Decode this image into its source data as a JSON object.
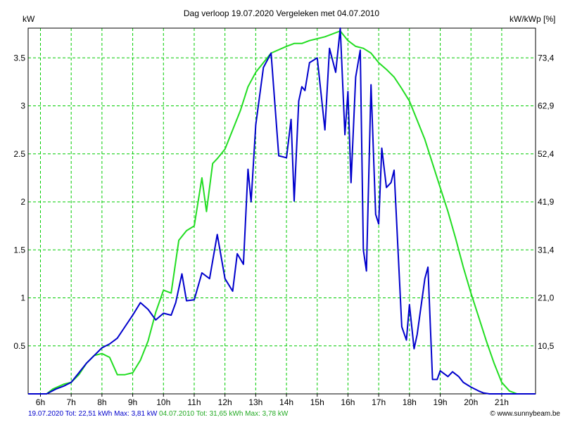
{
  "chart_data": {
    "type": "line",
    "title": "Dag  verloop 19.07.2020   Vergeleken met 04.07.2010",
    "ylabel_left": "kW",
    "ylabel_right": "kW/kWp [%]",
    "x_tick_labels": [
      "6h",
      "7h",
      "8h",
      "9h",
      "10h",
      "11h",
      "12h",
      "13h",
      "14h",
      "15h",
      "16h",
      "17h",
      "18h",
      "19h",
      "20h",
      "21h"
    ],
    "xlim_hours": [
      5.6,
      22.1
    ],
    "ylim": [
      0,
      3.81
    ],
    "y_ticks_left": [
      "0.5",
      "1",
      "1.5",
      "2",
      "2.5",
      "3",
      "3.5"
    ],
    "y_ticks_right": [
      "10,5",
      "21,0",
      "31,4",
      "41,9",
      "52,4",
      "62,9",
      "73,4"
    ],
    "grid": true,
    "series": [
      {
        "name": "19.07.2020",
        "color": "#0000cc",
        "legend": "19.07.2020 Tot: 22,51 kWh Max: 3,81 kW",
        "x": [
          5.6,
          6.2,
          6.5,
          6.75,
          7.0,
          7.25,
          7.5,
          7.75,
          8.0,
          8.25,
          8.5,
          8.75,
          9.0,
          9.25,
          9.5,
          9.75,
          10.0,
          10.25,
          10.4,
          10.6,
          10.75,
          11.0,
          11.25,
          11.5,
          11.75,
          12.0,
          12.25,
          12.4,
          12.6,
          12.75,
          12.85,
          13.0,
          13.25,
          13.5,
          13.75,
          14.0,
          14.15,
          14.25,
          14.4,
          14.5,
          14.6,
          14.75,
          15.0,
          15.25,
          15.4,
          15.6,
          15.75,
          15.9,
          16.0,
          16.1,
          16.25,
          16.4,
          16.5,
          16.6,
          16.75,
          16.9,
          17.0,
          17.1,
          17.25,
          17.4,
          17.5,
          17.75,
          17.9,
          18.0,
          18.15,
          18.25,
          18.5,
          18.6,
          18.75,
          18.9,
          19.0,
          19.25,
          19.4,
          19.6,
          19.75,
          20.0,
          20.25,
          20.4,
          20.6,
          20.75,
          21.0,
          21.25,
          21.5,
          21.75,
          22.1
        ],
        "values": [
          0,
          0,
          0.05,
          0.08,
          0.12,
          0.22,
          0.32,
          0.4,
          0.48,
          0.52,
          0.58,
          0.7,
          0.82,
          0.95,
          0.88,
          0.77,
          0.84,
          0.82,
          0.95,
          1.25,
          0.97,
          0.98,
          1.26,
          1.2,
          1.66,
          1.2,
          1.07,
          1.46,
          1.35,
          2.34,
          2.0,
          2.8,
          3.4,
          3.55,
          2.48,
          2.46,
          2.86,
          2.01,
          3.05,
          3.2,
          3.16,
          3.45,
          3.5,
          2.75,
          3.6,
          3.35,
          3.81,
          2.7,
          3.15,
          2.2,
          3.3,
          3.58,
          1.5,
          1.28,
          3.22,
          1.87,
          1.77,
          2.56,
          2.15,
          2.2,
          2.33,
          0.7,
          0.56,
          0.93,
          0.47,
          0.62,
          1.2,
          1.32,
          0.15,
          0.15,
          0.24,
          0.18,
          0.23,
          0.18,
          0.12,
          0.07,
          0.03,
          0.01,
          0,
          0,
          0,
          0,
          0,
          0,
          0
        ]
      },
      {
        "name": "04.07.2010",
        "color": "#22dd22",
        "legend": "04.07.2010 Tot: 31,65 kWh Max: 3,78 kW",
        "x": [
          5.6,
          6.2,
          6.4,
          6.75,
          7.0,
          7.25,
          7.5,
          7.75,
          8.0,
          8.25,
          8.5,
          8.75,
          9.0,
          9.25,
          9.5,
          9.75,
          10.0,
          10.25,
          10.5,
          10.75,
          11.0,
          11.25,
          11.4,
          11.6,
          11.75,
          12.0,
          12.25,
          12.5,
          12.75,
          13.0,
          13.5,
          14.0,
          14.25,
          14.5,
          14.75,
          15.0,
          15.25,
          15.5,
          15.75,
          16.0,
          16.25,
          16.5,
          16.75,
          17.0,
          17.25,
          17.5,
          17.75,
          18.0,
          18.25,
          18.5,
          18.75,
          19.0,
          19.25,
          19.5,
          19.75,
          20.0,
          20.25,
          20.5,
          20.75,
          21.0,
          21.25,
          21.5,
          21.75,
          22.1
        ],
        "values": [
          0,
          0,
          0.05,
          0.1,
          0.12,
          0.2,
          0.32,
          0.4,
          0.42,
          0.38,
          0.2,
          0.2,
          0.22,
          0.35,
          0.55,
          0.85,
          1.08,
          1.05,
          1.6,
          1.7,
          1.75,
          2.25,
          1.9,
          2.4,
          2.45,
          2.55,
          2.75,
          2.95,
          3.2,
          3.35,
          3.55,
          3.62,
          3.65,
          3.65,
          3.68,
          3.7,
          3.72,
          3.75,
          3.78,
          3.68,
          3.62,
          3.6,
          3.55,
          3.45,
          3.38,
          3.3,
          3.18,
          3.05,
          2.85,
          2.65,
          2.4,
          2.15,
          1.9,
          1.62,
          1.32,
          1.05,
          0.8,
          0.55,
          0.32,
          0.12,
          0.03,
          0,
          0,
          0
        ]
      }
    ]
  },
  "footer": "© www.sunnybeam.be"
}
